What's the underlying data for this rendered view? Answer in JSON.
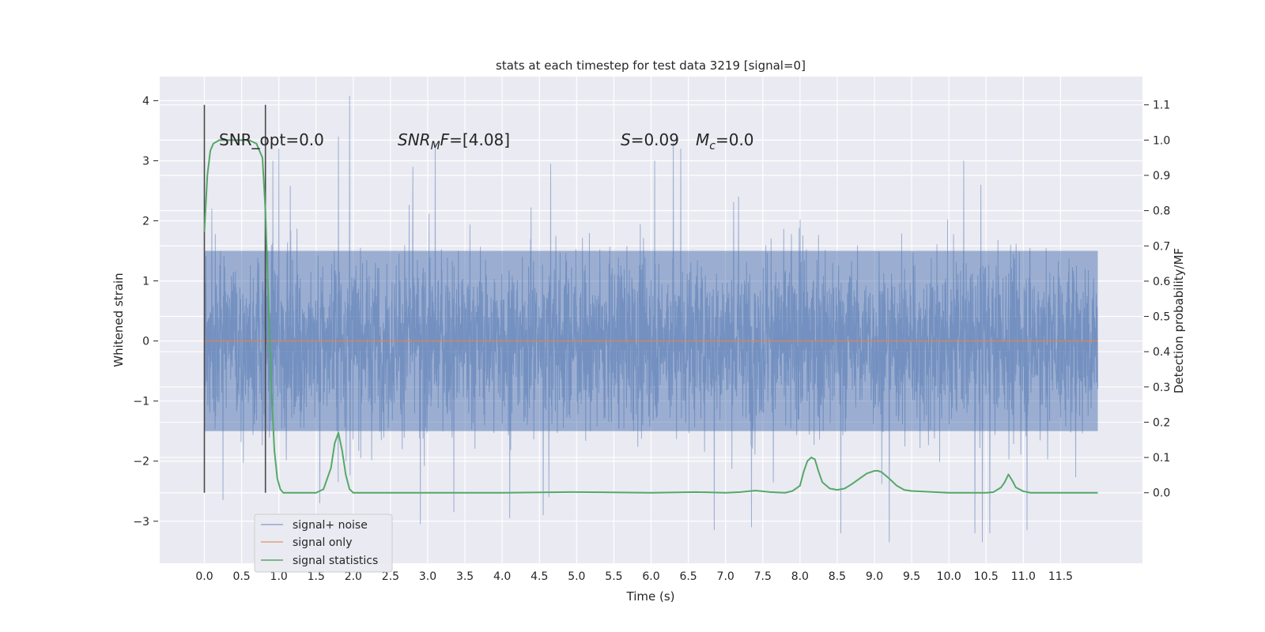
{
  "chart_data": {
    "type": "line",
    "title": "stats at each timestep for test data 3219 [signal=0]",
    "xlabel": "Time (s)",
    "ylabel": "Whitened strain",
    "y2label": "Detection probability/MF",
    "xlim": [
      -0.6,
      12.6
    ],
    "ylim": [
      -3.7,
      4.4
    ],
    "y2lim": [
      -0.2,
      1.18
    ],
    "xticks": [
      0.0,
      0.5,
      1.0,
      1.5,
      2.0,
      2.5,
      3.0,
      3.5,
      4.0,
      4.5,
      5.0,
      5.5,
      6.0,
      6.5,
      7.0,
      7.5,
      8.0,
      8.5,
      9.0,
      9.5,
      10.0,
      10.5,
      11.0,
      11.5
    ],
    "xtick_labels": [
      "0.0",
      "0.5",
      "1.0",
      "1.5",
      "2.0",
      "2.5",
      "3.0",
      "3.5",
      "4.0",
      "4.5",
      "5.0",
      "5.5",
      "6.0",
      "6.5",
      "7.0",
      "7.5",
      "8.0",
      "8.5",
      "9.0",
      "9.5",
      "10.0",
      "10.5",
      "11.0",
      "11.5"
    ],
    "yticks": [
      -3,
      -2,
      -1,
      0,
      1,
      2,
      3,
      4
    ],
    "ytick_labels": [
      "−3",
      "−2",
      "−1",
      "0",
      "1",
      "2",
      "3",
      "4"
    ],
    "y2ticks": [
      0.0,
      0.1,
      0.2,
      0.3,
      0.4,
      0.5,
      0.6,
      0.7,
      0.8,
      0.9,
      1.0,
      1.1
    ],
    "y2tick_labels": [
      "0.0",
      "0.1",
      "0.2",
      "0.3",
      "0.4",
      "0.5",
      "0.6",
      "0.7",
      "0.8",
      "0.9",
      "1.0",
      "1.1"
    ],
    "grid": true,
    "legend_position": "lower-left",
    "colors": {
      "background": "#eaeaf2",
      "noise": "#4c72b0",
      "signal": "#dd8452",
      "stats": "#55a868",
      "vline": "#4a4a4a"
    },
    "annotations": {
      "snr_opt": "SNR_opt=0.0",
      "snr_mf_prefix": "SNR",
      "snr_mf_sub": "M",
      "snr_mf_suffix": "F=[4.08]",
      "s_label": "S",
      "s_value": "=0.09",
      "mc_label": "M",
      "mc_sub": "c",
      "mc_value": "=0.0"
    },
    "vertical_lines_x": [
      0.0,
      0.82
    ],
    "noise_series": {
      "name": "signal+ noise",
      "t_start": 0.0,
      "t_end": 12.0,
      "core_amplitude": 1.5,
      "positive_extreme_spikes": [
        [
          1.95,
          4.08
        ],
        [
          1.8,
          3.4
        ],
        [
          1.0,
          3.2
        ],
        [
          0.92,
          3.0
        ],
        [
          3.1,
          3.3
        ],
        [
          6.3,
          3.3
        ],
        [
          6.4,
          3.2
        ],
        [
          11.05,
          3.05
        ],
        [
          2.8,
          2.9
        ],
        [
          4.65,
          2.95
        ],
        [
          6.05,
          3.0
        ],
        [
          10.2,
          3.0
        ],
        [
          0.1,
          2.2
        ]
      ],
      "negative_extreme_spikes": [
        [
          10.45,
          -3.35
        ],
        [
          9.2,
          -3.35
        ],
        [
          6.85,
          -3.15
        ],
        [
          11.05,
          -3.15
        ],
        [
          2.9,
          -3.05
        ],
        [
          4.55,
          -2.9
        ],
        [
          8.55,
          -3.2
        ],
        [
          7.35,
          -3.1
        ],
        [
          10.35,
          -3.2
        ],
        [
          3.35,
          -2.85
        ],
        [
          10.55,
          -3.2
        ],
        [
          4.1,
          -2.95
        ],
        [
          0.25,
          -2.65
        ],
        [
          1.55,
          -2.7
        ]
      ]
    },
    "signal_series": {
      "name": "signal only",
      "x": [
        0.0,
        12.0
      ],
      "y": [
        0.0,
        0.0
      ]
    },
    "stats_series": {
      "name": "signal statistics",
      "x": [
        0.0,
        0.04,
        0.08,
        0.12,
        0.2,
        0.3,
        0.5,
        0.6,
        0.7,
        0.78,
        0.82,
        0.86,
        0.9,
        0.94,
        0.98,
        1.02,
        1.06,
        1.1,
        1.5,
        1.6,
        1.7,
        1.75,
        1.8,
        1.85,
        1.9,
        1.95,
        2.0,
        2.05,
        3.0,
        4.0,
        4.9,
        5.0,
        6.0,
        6.6,
        7.0,
        7.2,
        7.4,
        7.6,
        7.8,
        7.9,
        8.0,
        8.05,
        8.1,
        8.15,
        8.2,
        8.25,
        8.3,
        8.4,
        8.5,
        8.6,
        8.7,
        8.8,
        8.9,
        9.0,
        9.05,
        9.1,
        9.2,
        9.3,
        9.4,
        9.5,
        10.0,
        10.5,
        10.6,
        10.7,
        10.75,
        10.8,
        10.85,
        10.9,
        11.0,
        11.1,
        11.2,
        11.5,
        12.0
      ],
      "y": [
        0.74,
        0.9,
        0.97,
        0.99,
        1.0,
        1.0,
        1.0,
        1.0,
        0.99,
        0.95,
        0.8,
        0.55,
        0.3,
        0.12,
        0.04,
        0.01,
        0.0,
        0.0,
        0.0,
        0.01,
        0.07,
        0.14,
        0.17,
        0.12,
        0.05,
        0.01,
        0.0,
        0.0,
        0.0,
        0.0,
        0.002,
        0.002,
        0.0,
        0.002,
        0.0,
        0.002,
        0.006,
        0.002,
        0.0,
        0.005,
        0.02,
        0.06,
        0.09,
        0.1,
        0.095,
        0.06,
        0.03,
        0.012,
        0.008,
        0.012,
        0.025,
        0.04,
        0.055,
        0.062,
        0.062,
        0.058,
        0.04,
        0.02,
        0.008,
        0.005,
        0.0,
        0.0,
        0.002,
        0.015,
        0.03,
        0.052,
        0.035,
        0.015,
        0.004,
        0.0,
        0.0,
        0.0,
        0.0
      ]
    }
  }
}
